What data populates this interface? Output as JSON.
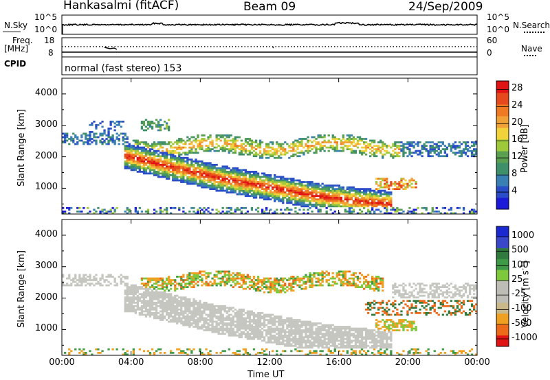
{
  "header": {
    "station": "Hankasalmi (fitACF)",
    "beam": "Beam 09",
    "date": "24/Sep/2009"
  },
  "noise_panel": {
    "left_label": "N.Sky",
    "right_label": "N.Search",
    "y_top": "10^5",
    "y_bottom": "10^0",
    "right_top": "10^5",
    "right_bottom": "10^0"
  },
  "freq_panel": {
    "left_label_1": "Freq.",
    "left_label_2": "[MHz]",
    "left_top": "18",
    "left_bottom": "8",
    "right_label": "Nave",
    "right_top": "60",
    "right_bottom": "0",
    "cpid_label": "CPID",
    "cpid_text": "normal (fast stereo) 153"
  },
  "colors": {
    "power": [
      "#1a1ad8",
      "#2a4cc8",
      "#3a7fb4",
      "#3e8f6a",
      "#5aa050",
      "#9ec93a",
      "#f2d23a",
      "#f1a236",
      "#ee7a24",
      "#e64a1c",
      "#e01414"
    ],
    "velocity": [
      "#e01414",
      "#ec6a1a",
      "#f0a020",
      "#c9b88a",
      "#bdbdb5",
      "#bdbdb5",
      "#7ec83c",
      "#3e9a46",
      "#2f7a3c",
      "#3848c8",
      "#1a2ad0"
    ],
    "ground_scatter": "#c6c6c0"
  },
  "chart_data": [
    {
      "type": "heatmap",
      "title": "",
      "xlabel": "Time UT",
      "ylabel": "Slant Range [km]",
      "x_ticks": [
        "00:00",
        "04:00",
        "08:00",
        "12:00",
        "16:00",
        "20:00",
        "00:00"
      ],
      "y_ticks": [
        "1000",
        "2000",
        "3000",
        "4000"
      ],
      "xlim_hours": [
        0,
        24
      ],
      "ylim_km": [
        180,
        4500
      ],
      "colorbar": {
        "label": "Power [dB]",
        "ticks": [
          "4",
          "8",
          "12",
          "16",
          "20",
          "24",
          "28"
        ],
        "range": [
          0,
          30
        ]
      },
      "features": [
        {
          "name": "main band",
          "t_start": 3.6,
          "t_end": 19.0,
          "range_center_km": 1350,
          "peak_power_db": 28
        },
        {
          "name": "upper band",
          "t_start": 4.0,
          "t_end": 19.5,
          "range_center_km": 2200,
          "peak_power_db": 24
        },
        {
          "name": "early echoes",
          "t_start": 0.0,
          "t_end": 3.8,
          "range_center_km": 2550,
          "peak_power_db": 8
        },
        {
          "name": "late echoes",
          "t_start": 19.5,
          "t_end": 24.0,
          "range_center_km": 2200,
          "peak_power_db": 8
        },
        {
          "name": "near-range noise",
          "t_start": 0.0,
          "t_end": 24.0,
          "range_center_km": 280,
          "peak_power_db": 8
        }
      ]
    },
    {
      "type": "heatmap",
      "title": "",
      "xlabel": "Time UT",
      "ylabel": "Slant Range [km]",
      "x_ticks": [
        "00:00",
        "04:00",
        "08:00",
        "12:00",
        "16:00",
        "20:00",
        "00:00"
      ],
      "y_ticks": [
        "1000",
        "2000",
        "3000",
        "4000"
      ],
      "xlim_hours": [
        0,
        24
      ],
      "ylim_km": [
        180,
        4500
      ],
      "colorbar": {
        "label": "Velocity [m s-1]",
        "ticks": [
          "1000",
          "500",
          "100",
          "25",
          "-25",
          "-100",
          "-500",
          "-1000"
        ]
      },
      "features": [
        {
          "name": "ground scatter band",
          "t_start": 3.6,
          "t_end": 19.0,
          "range_center_km": 1450,
          "velocity": "ground scatter"
        },
        {
          "name": "upper band",
          "t_start": 4.5,
          "t_end": 18.5,
          "range_center_km": 2500,
          "velocity": "-100 to 100"
        },
        {
          "name": "post-dusk echoes",
          "t_start": 17.5,
          "t_end": 24.0,
          "range_center_km": 1700,
          "velocity": "-500 to 500"
        }
      ]
    }
  ]
}
